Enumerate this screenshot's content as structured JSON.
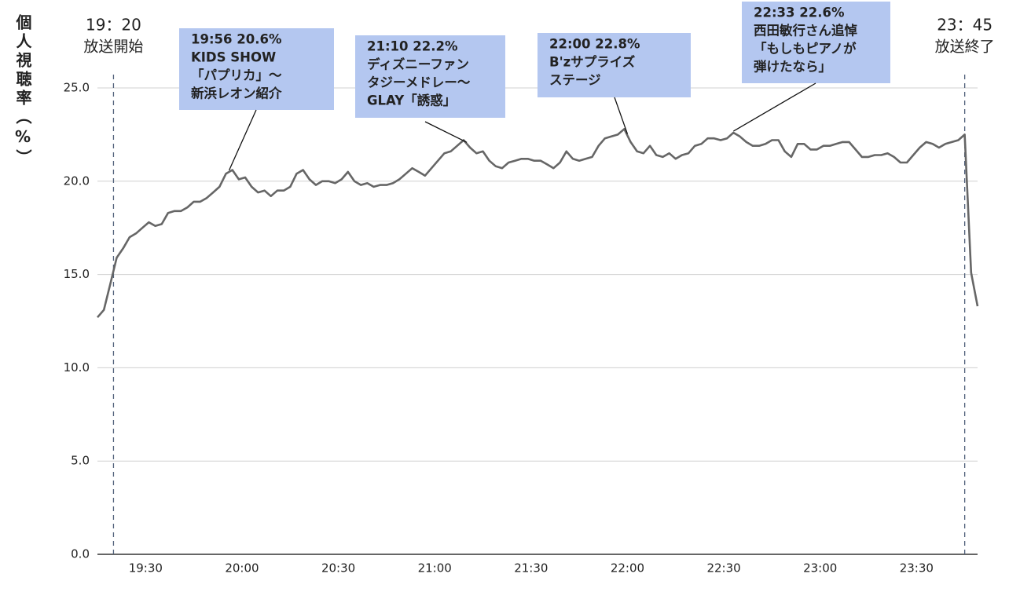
{
  "chart_data": {
    "type": "line",
    "y_label": "個人視聴率（%）",
    "x": [
      "19:15",
      "19:17",
      "19:19",
      "19:21",
      "19:23",
      "19:25",
      "19:27",
      "19:29",
      "19:31",
      "19:33",
      "19:35",
      "19:37",
      "19:39",
      "19:41",
      "19:43",
      "19:45",
      "19:47",
      "19:49",
      "19:51",
      "19:53",
      "19:55",
      "19:57",
      "19:59",
      "20:01",
      "20:03",
      "20:05",
      "20:07",
      "20:09",
      "20:11",
      "20:13",
      "20:15",
      "20:17",
      "20:19",
      "20:21",
      "20:23",
      "20:25",
      "20:27",
      "20:29",
      "20:31",
      "20:33",
      "20:35",
      "20:37",
      "20:39",
      "20:41",
      "20:43",
      "20:45",
      "20:47",
      "20:49",
      "20:51",
      "20:53",
      "20:55",
      "20:57",
      "20:59",
      "21:01",
      "21:03",
      "21:05",
      "21:07",
      "21:09",
      "21:11",
      "21:13",
      "21:15",
      "21:17",
      "21:19",
      "21:21",
      "21:23",
      "21:25",
      "21:27",
      "21:29",
      "21:31",
      "21:33",
      "21:35",
      "21:37",
      "21:39",
      "21:41",
      "21:43",
      "21:45",
      "21:47",
      "21:49",
      "21:51",
      "21:53",
      "21:55",
      "21:57",
      "21:59",
      "22:01",
      "22:03",
      "22:05",
      "22:07",
      "22:09",
      "22:11",
      "22:13",
      "22:15",
      "22:17",
      "22:19",
      "22:21",
      "22:23",
      "22:25",
      "22:27",
      "22:29",
      "22:31",
      "22:33",
      "22:35",
      "22:37",
      "22:39",
      "22:41",
      "22:43",
      "22:45",
      "22:47",
      "22:49",
      "22:51",
      "22:53",
      "22:55",
      "22:57",
      "22:59",
      "23:01",
      "23:03",
      "23:05",
      "23:07",
      "23:09",
      "23:11",
      "23:13",
      "23:15",
      "23:17",
      "23:19",
      "23:21",
      "23:23",
      "23:25",
      "23:27",
      "23:29",
      "23:31",
      "23:33",
      "23:35",
      "23:37",
      "23:39",
      "23:41",
      "23:43",
      "23:45",
      "23:47",
      "23:49"
    ],
    "values": [
      12.7,
      13.1,
      14.5,
      15.9,
      16.4,
      17.0,
      17.2,
      17.5,
      17.8,
      17.6,
      17.7,
      18.3,
      18.4,
      18.4,
      18.6,
      18.9,
      18.9,
      19.1,
      19.4,
      19.7,
      20.4,
      20.6,
      20.1,
      20.2,
      19.7,
      19.4,
      19.5,
      19.2,
      19.5,
      19.5,
      19.7,
      20.4,
      20.6,
      20.1,
      19.8,
      20.0,
      20.0,
      19.9,
      20.1,
      20.5,
      20.0,
      19.8,
      19.9,
      19.7,
      19.8,
      19.8,
      19.9,
      20.1,
      20.4,
      20.7,
      20.5,
      20.3,
      20.7,
      21.1,
      21.5,
      21.6,
      21.9,
      22.2,
      21.8,
      21.5,
      21.6,
      21.1,
      20.8,
      20.7,
      21.0,
      21.1,
      21.2,
      21.2,
      21.1,
      21.1,
      20.9,
      20.7,
      21.0,
      21.6,
      21.2,
      21.1,
      21.2,
      21.3,
      21.9,
      22.3,
      22.4,
      22.5,
      22.8,
      22.1,
      21.6,
      21.5,
      21.9,
      21.4,
      21.3,
      21.5,
      21.2,
      21.4,
      21.5,
      21.9,
      22.0,
      22.3,
      22.3,
      22.2,
      22.3,
      22.6,
      22.4,
      22.1,
      21.9,
      21.9,
      22.0,
      22.2,
      22.2,
      21.6,
      21.3,
      22.0,
      22.0,
      21.7,
      21.7,
      21.9,
      21.9,
      22.0,
      22.1,
      22.1,
      21.7,
      21.3,
      21.3,
      21.4,
      21.4,
      21.5,
      21.3,
      21.0,
      21.0,
      21.4,
      21.8,
      22.1,
      22.0,
      21.8,
      22.0,
      22.1,
      22.2,
      22.5,
      15.1,
      13.3
    ],
    "color": "#666666",
    "xlim": [
      "19:15",
      "23:49"
    ],
    "xticks": [
      "19:30",
      "20:00",
      "20:30",
      "21:00",
      "21:30",
      "22:00",
      "22:30",
      "23:00",
      "23:30"
    ],
    "ylim": [
      0,
      25
    ],
    "yticks": [
      {
        "value": 0,
        "label": "0.0"
      },
      {
        "value": 5,
        "label": "5.0"
      },
      {
        "value": 10,
        "label": "10.0"
      },
      {
        "value": 15,
        "label": "15.0"
      },
      {
        "value": 20,
        "label": "20.0"
      },
      {
        "value": 25,
        "label": "25.0"
      }
    ],
    "grid": true,
    "markers": [
      {
        "x": "19:20",
        "label": "19：20",
        "note": "放送開始"
      },
      {
        "x": "23:45",
        "label": "23：45",
        "note": "放送終了"
      }
    ],
    "callouts": [
      {
        "lines": [
          "19:56  20.6%",
          "KIDS SHOW",
          "「パプリカ」～",
          "新浜レオン紹介"
        ]
      },
      {
        "lines": [
          "21:10  22.2%",
          "ディズニーファン",
          "タジーメドレー～",
          "GLAY「誘惑」"
        ]
      },
      {
        "lines": [
          "22:00  22.8%",
          "B'zサプライズ",
          "ステージ"
        ]
      },
      {
        "lines": [
          "22:33  22.6%",
          "西田敏行さん追悼",
          "「もしもピアノが",
          "弾けたなら」"
        ]
      }
    ]
  }
}
